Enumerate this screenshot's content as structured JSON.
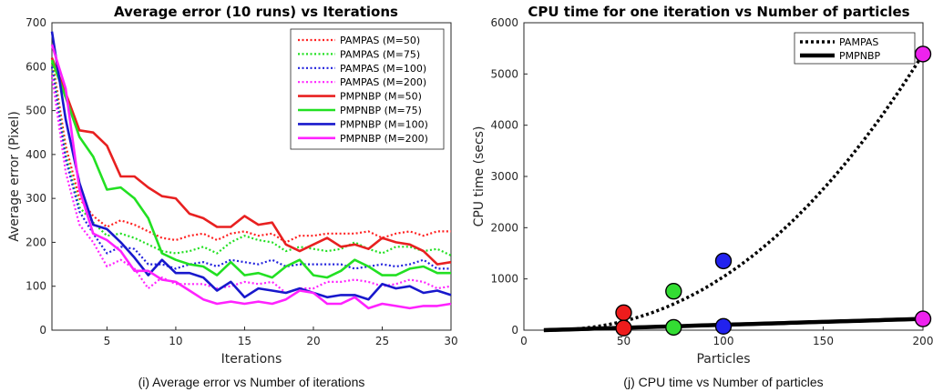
{
  "chart_data": [
    {
      "type": "line",
      "title": "Average error (10 runs) vs Iterations",
      "xlabel": "Iterations",
      "ylabel": "Average error (Pixel)",
      "caption": "(i) Average error vs Number of iterations",
      "xlim": [
        1,
        30
      ],
      "ylim": [
        0,
        700
      ],
      "xticks": [
        5,
        10,
        15,
        20,
        25,
        30
      ],
      "yticks": [
        0,
        100,
        200,
        300,
        400,
        500,
        600,
        700
      ],
      "legend_position": "top-right",
      "x": [
        1,
        2,
        3,
        4,
        5,
        6,
        7,
        8,
        9,
        10,
        11,
        12,
        13,
        14,
        15,
        16,
        17,
        18,
        19,
        20,
        21,
        22,
        23,
        24,
        25,
        26,
        27,
        28,
        29,
        30
      ],
      "series": [
        {
          "name": "PAMPAS (M=50)",
          "color": "#ff2020",
          "style": "dotted",
          "values": [
            620,
            420,
            300,
            260,
            235,
            250,
            240,
            225,
            210,
            205,
            215,
            220,
            205,
            220,
            225,
            215,
            220,
            200,
            215,
            215,
            220,
            220,
            220,
            225,
            210,
            220,
            225,
            215,
            225,
            225
          ]
        },
        {
          "name": "PAMPAS (M=75)",
          "color": "#22e022",
          "style": "dotted",
          "values": [
            610,
            400,
            280,
            245,
            215,
            220,
            210,
            195,
            180,
            175,
            180,
            190,
            175,
            200,
            215,
            205,
            200,
            180,
            190,
            185,
            180,
            185,
            200,
            185,
            175,
            190,
            190,
            180,
            185,
            170
          ]
        },
        {
          "name": "PAMPAS (M=100)",
          "color": "#2020dd",
          "style": "dotted",
          "values": [
            600,
            390,
            270,
            220,
            175,
            190,
            185,
            150,
            150,
            140,
            150,
            155,
            145,
            160,
            155,
            150,
            160,
            145,
            150,
            150,
            150,
            150,
            140,
            145,
            150,
            145,
            150,
            160,
            140,
            140
          ]
        },
        {
          "name": "PAMPAS (M=200)",
          "color": "#ff22ff",
          "style": "dotted",
          "values": [
            580,
            360,
            240,
            200,
            145,
            160,
            140,
            95,
            120,
            105,
            105,
            105,
            95,
            100,
            110,
            105,
            110,
            85,
            95,
            95,
            110,
            110,
            115,
            110,
            100,
            105,
            115,
            110,
            95,
            100
          ]
        },
        {
          "name": "PMPNBP (M=50)",
          "color": "#e82020",
          "style": "solid",
          "values": [
            620,
            540,
            455,
            450,
            420,
            350,
            350,
            325,
            305,
            300,
            265,
            255,
            235,
            235,
            260,
            240,
            245,
            195,
            180,
            195,
            210,
            190,
            195,
            185,
            210,
            200,
            195,
            180,
            150,
            155
          ]
        },
        {
          "name": "PMPNBP (M=75)",
          "color": "#22e022",
          "style": "solid",
          "values": [
            615,
            530,
            440,
            395,
            320,
            325,
            300,
            255,
            175,
            160,
            150,
            145,
            125,
            155,
            125,
            130,
            120,
            145,
            160,
            125,
            120,
            135,
            160,
            145,
            125,
            125,
            140,
            145,
            130,
            130
          ]
        },
        {
          "name": "PMPNBP (M=100)",
          "color": "#1818cc",
          "style": "solid",
          "values": [
            680,
            480,
            335,
            240,
            230,
            200,
            165,
            125,
            160,
            130,
            130,
            120,
            90,
            110,
            75,
            95,
            90,
            85,
            95,
            85,
            75,
            80,
            80,
            70,
            105,
            95,
            100,
            85,
            90,
            80
          ]
        },
        {
          "name": "PMPNBP (M=200)",
          "color": "#ff22ff",
          "style": "solid",
          "values": [
            650,
            550,
            320,
            220,
            205,
            180,
            135,
            135,
            115,
            110,
            90,
            70,
            60,
            65,
            60,
            65,
            60,
            70,
            90,
            85,
            60,
            60,
            75,
            50,
            60,
            55,
            50,
            55,
            55,
            60
          ]
        }
      ]
    },
    {
      "type": "line",
      "title": "CPU time for one iteration vs Number of particles",
      "xlabel": "Particles",
      "ylabel": "CPU time (secs)",
      "caption": "(j) CPU time vs Number of particles",
      "xlim": [
        0,
        200
      ],
      "ylim": [
        0,
        6000
      ],
      "xticks": [
        0,
        50,
        100,
        150,
        200
      ],
      "yticks": [
        0,
        1000,
        2000,
        3000,
        4000,
        5000,
        6000
      ],
      "legend_position": "top-right",
      "curve_start_x": 10,
      "series": [
        {
          "name": "PAMPAS",
          "color": "#000000",
          "style": "dotted",
          "curve": "quadratic",
          "marker_x": [
            50,
            75,
            100,
            200
          ],
          "marker_y": [
            340,
            760,
            1350,
            5390
          ]
        },
        {
          "name": "PMPNBP",
          "color": "#000000",
          "style": "solid",
          "curve": "linear",
          "marker_x": [
            50,
            75,
            100,
            200
          ],
          "marker_y": [
            40,
            55,
            75,
            220
          ]
        }
      ],
      "marker_colors": [
        "#ee1c1c",
        "#33dd33",
        "#2222ee",
        "#ee22ee"
      ]
    }
  ]
}
